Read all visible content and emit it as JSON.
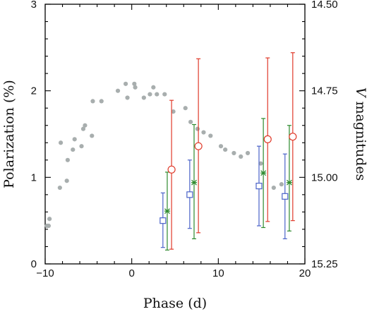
{
  "chart_data": {
    "type": "scatter",
    "xlabel": "Phase (d)",
    "ylabel_left": "Polarization (%)",
    "ylabel_right_italic": "V",
    "ylabel_right_rest": " magnitudes",
    "xlim": [
      -10,
      20
    ],
    "ylim": [
      0,
      3
    ],
    "y2lim": [
      14.5,
      15.25
    ],
    "y2_inverted": true,
    "x_ticks": [
      -10,
      0,
      10,
      20
    ],
    "y_ticks": [
      0,
      1,
      2,
      3
    ],
    "y2_ticks": [
      14.5,
      14.75,
      15.0,
      15.25
    ],
    "x_tick_labels": [
      "−10",
      "0",
      "10",
      "20"
    ],
    "y_tick_labels": [
      "0",
      "1",
      "2",
      "3"
    ],
    "y2_tick_labels": [
      "14.50",
      "14.75",
      "15.00",
      "15.25"
    ],
    "colors": {
      "lightcurve": "#a8aeae",
      "square": "#4a62c8",
      "star": "#2e8a2e",
      "circle": "#e03a2a"
    },
    "series": [
      {
        "marker": "filled-circle",
        "axis": "right",
        "x": [
          -9.8,
          -9.6,
          -9.5,
          -8.3,
          -8.2,
          -7.5,
          -7.4,
          -6.8,
          -6.6,
          -5.8,
          -5.6,
          -5.4,
          -4.6,
          -4.5,
          -3.5,
          -1.6,
          -0.7,
          -0.5,
          0.3,
          0.4,
          1.4,
          2.1,
          2.5,
          2.9,
          3.8,
          4.8,
          6.2,
          6.8,
          7.6,
          8.3,
          9.1,
          10.3,
          10.8,
          11.8,
          12.6,
          13.4,
          14.9,
          16.4,
          17.3
        ],
        "y": [
          15.14,
          15.14,
          15.12,
          15.03,
          14.9,
          15.01,
          14.95,
          14.92,
          14.89,
          14.91,
          14.86,
          14.85,
          14.88,
          14.78,
          14.78,
          14.75,
          14.73,
          14.77,
          14.73,
          14.74,
          14.77,
          14.76,
          14.74,
          14.76,
          14.76,
          14.81,
          14.8,
          14.84,
          14.86,
          14.87,
          14.88,
          14.91,
          14.92,
          14.93,
          14.94,
          14.93,
          14.96,
          15.03,
          15.02
        ]
      },
      {
        "marker": "open-square",
        "axis": "left",
        "x": [
          3.6,
          6.7,
          14.7,
          17.7
        ],
        "y": [
          0.5,
          0.8,
          0.9,
          0.78
        ],
        "yerr_low": [
          0.31,
          0.39,
          0.46,
          0.49
        ],
        "yerr_high": [
          0.32,
          0.4,
          0.46,
          0.49
        ]
      },
      {
        "marker": "star",
        "axis": "left",
        "x": [
          4.1,
          7.2,
          15.2,
          18.2
        ],
        "y": [
          0.61,
          0.94,
          1.05,
          0.94
        ],
        "yerr_low": [
          0.45,
          0.65,
          0.63,
          0.56
        ],
        "yerr_high": [
          0.45,
          0.67,
          0.63,
          0.66
        ]
      },
      {
        "marker": "open-circle",
        "axis": "left",
        "x": [
          4.6,
          7.7,
          15.7,
          18.6
        ],
        "y": [
          1.09,
          1.36,
          1.44,
          1.47
        ],
        "yerr_low": [
          0.92,
          1.0,
          0.95,
          0.97
        ],
        "yerr_high": [
          0.8,
          1.01,
          0.94,
          0.97
        ]
      }
    ]
  }
}
